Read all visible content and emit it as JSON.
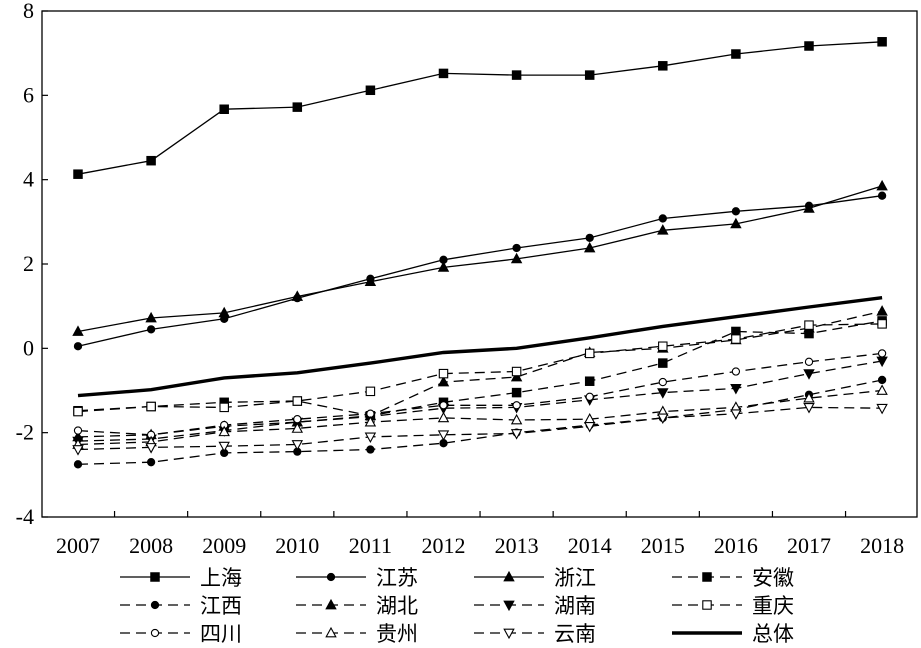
{
  "chart_data": {
    "type": "line",
    "x": [
      "2007",
      "2008",
      "2009",
      "2010",
      "2011",
      "2012",
      "2013",
      "2014",
      "2015",
      "2016",
      "2017",
      "2018"
    ],
    "ylim": [
      -4,
      8
    ],
    "yticks": [
      "8",
      "6",
      "4",
      "2",
      "0",
      "-2",
      "-4"
    ],
    "grid": false,
    "legend": "bottom",
    "series": [
      {
        "name": "上海",
        "style": "solid",
        "marker": "filled-square",
        "values": [
          4.13,
          4.45,
          5.67,
          5.72,
          6.12,
          6.52,
          6.48,
          6.48,
          6.7,
          6.98,
          7.17,
          7.27
        ]
      },
      {
        "name": "江苏",
        "style": "solid",
        "marker": "filled-circle",
        "values": [
          0.05,
          0.45,
          0.7,
          1.19,
          1.65,
          2.1,
          2.38,
          2.62,
          3.08,
          3.25,
          3.38,
          3.62
        ]
      },
      {
        "name": "浙江",
        "style": "solid",
        "marker": "filled-triangle-up",
        "values": [
          0.4,
          0.72,
          0.84,
          1.23,
          1.58,
          1.92,
          2.12,
          2.38,
          2.8,
          2.95,
          3.32,
          3.85
        ]
      },
      {
        "name": "安徽",
        "style": "dashed",
        "marker": "filled-square",
        "values": [
          -1.48,
          -1.38,
          -1.28,
          -1.25,
          -1.6,
          -1.28,
          -1.05,
          -0.78,
          -0.35,
          0.4,
          0.35,
          0.65
        ]
      },
      {
        "name": "江西",
        "style": "dashed",
        "marker": "filled-circle",
        "values": [
          -2.75,
          -2.7,
          -2.48,
          -2.45,
          -2.4,
          -2.25,
          -2.0,
          -1.82,
          -1.65,
          -1.45,
          -1.1,
          -0.75
        ]
      },
      {
        "name": "湖北",
        "style": "dashed",
        "marker": "filled-triangle-up",
        "values": [
          -2.1,
          -2.05,
          -1.85,
          -1.75,
          -1.6,
          -0.8,
          -0.68,
          -0.1,
          0.0,
          0.2,
          0.48,
          0.88
        ]
      },
      {
        "name": "湖南",
        "style": "dashed",
        "marker": "filled-triangle-down",
        "values": [
          -2.2,
          -2.15,
          -1.95,
          -1.75,
          -1.62,
          -1.42,
          -1.4,
          -1.22,
          -1.05,
          -0.95,
          -0.6,
          -0.3
        ]
      },
      {
        "name": "重庆",
        "style": "dashed",
        "marker": "open-square",
        "values": [
          -1.5,
          -1.38,
          -1.4,
          -1.25,
          -1.02,
          -0.6,
          -0.55,
          -0.12,
          0.05,
          0.22,
          0.55,
          0.58
        ]
      },
      {
        "name": "四川",
        "style": "dashed",
        "marker": "open-circle",
        "values": [
          -1.95,
          -2.05,
          -1.82,
          -1.68,
          -1.55,
          -1.35,
          -1.35,
          -1.15,
          -0.8,
          -0.55,
          -0.32,
          -0.12
        ]
      },
      {
        "name": "贵州",
        "style": "dashed",
        "marker": "open-triangle-up",
        "values": [
          -2.28,
          -2.22,
          -1.98,
          -1.9,
          -1.75,
          -1.65,
          -1.7,
          -1.68,
          -1.5,
          -1.4,
          -1.18,
          -1.0
        ]
      },
      {
        "name": "云南",
        "style": "dashed",
        "marker": "open-triangle-down",
        "values": [
          -2.4,
          -2.35,
          -2.32,
          -2.28,
          -2.1,
          -2.05,
          -2.02,
          -1.85,
          -1.65,
          -1.55,
          -1.4,
          -1.42
        ]
      },
      {
        "name": "总体",
        "style": "bold",
        "marker": "none",
        "values": [
          -1.12,
          -0.98,
          -0.7,
          -0.58,
          -0.35,
          -0.1,
          0.0,
          0.25,
          0.52,
          0.75,
          0.98,
          1.2
        ]
      }
    ]
  }
}
